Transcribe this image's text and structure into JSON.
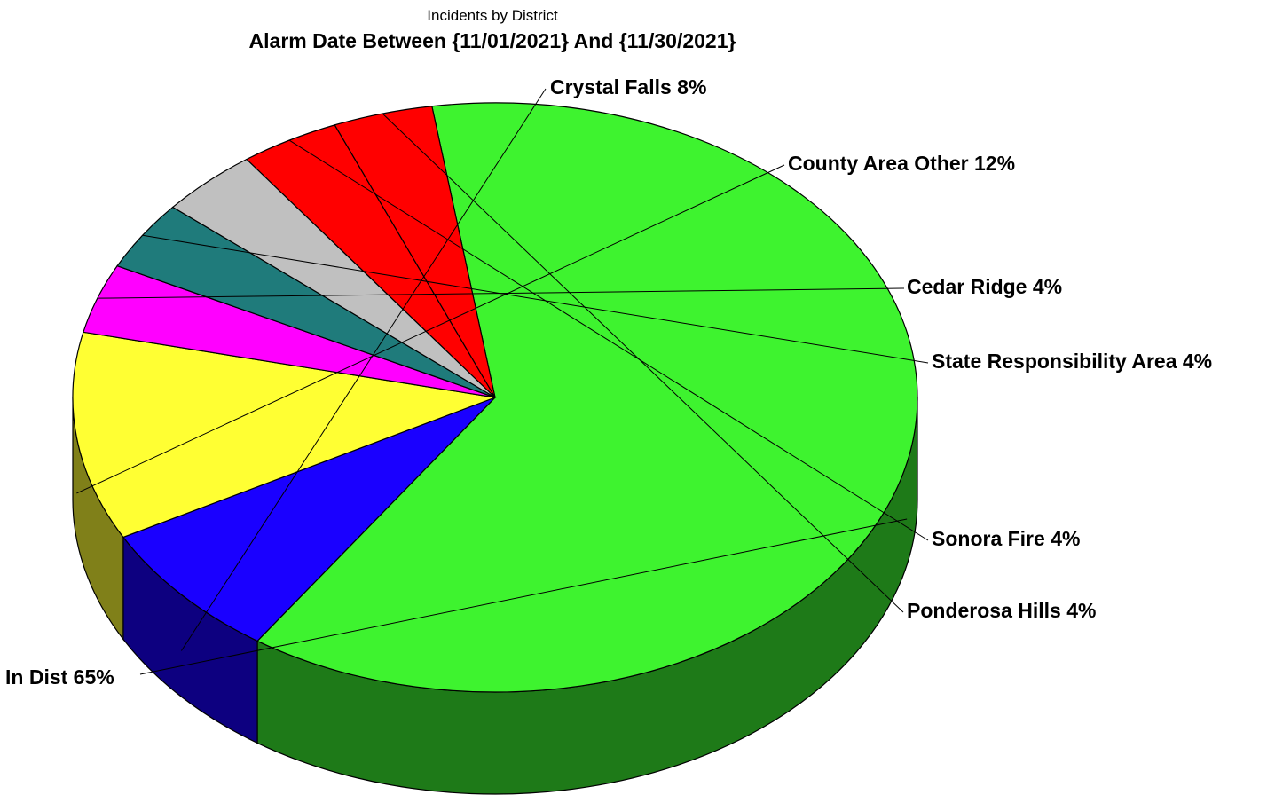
{
  "chart_data": {
    "type": "pie",
    "title": "Incidents by District",
    "subtitle": "Alarm Date Between {11/01/2021} And {11/30/2021}",
    "style": "3d",
    "slices": [
      {
        "label": "In Dist 65%",
        "value": 65,
        "color": "#3ef32f",
        "side_color": "#1e7a18"
      },
      {
        "label": "Crystal Falls 8%",
        "value": 8,
        "color": "#1a00ff",
        "side_color": "#0d0080"
      },
      {
        "label": "County Area Other 12%",
        "value": 12,
        "color": "#ffff33",
        "side_color": "#808019"
      },
      {
        "label": "Cedar Ridge 4%",
        "value": 4,
        "color": "#ff00ff",
        "side_color": "#800080"
      },
      {
        "label": "State Responsibility Area 4%",
        "value": 4,
        "color": "#1f7b7b",
        "side_color": "#103e3e"
      },
      {
        "label": "",
        "value": 4,
        "color": "#c0c0c0",
        "side_color": "#606060"
      },
      {
        "label": "Sonora Fire 4%",
        "value": 4,
        "color": "#ff0000",
        "side_color": "#7a0000"
      },
      {
        "label": "Ponderosa Hills 4%",
        "value": 4,
        "color": "#ff0000",
        "side_color": "#7a0000"
      }
    ]
  }
}
